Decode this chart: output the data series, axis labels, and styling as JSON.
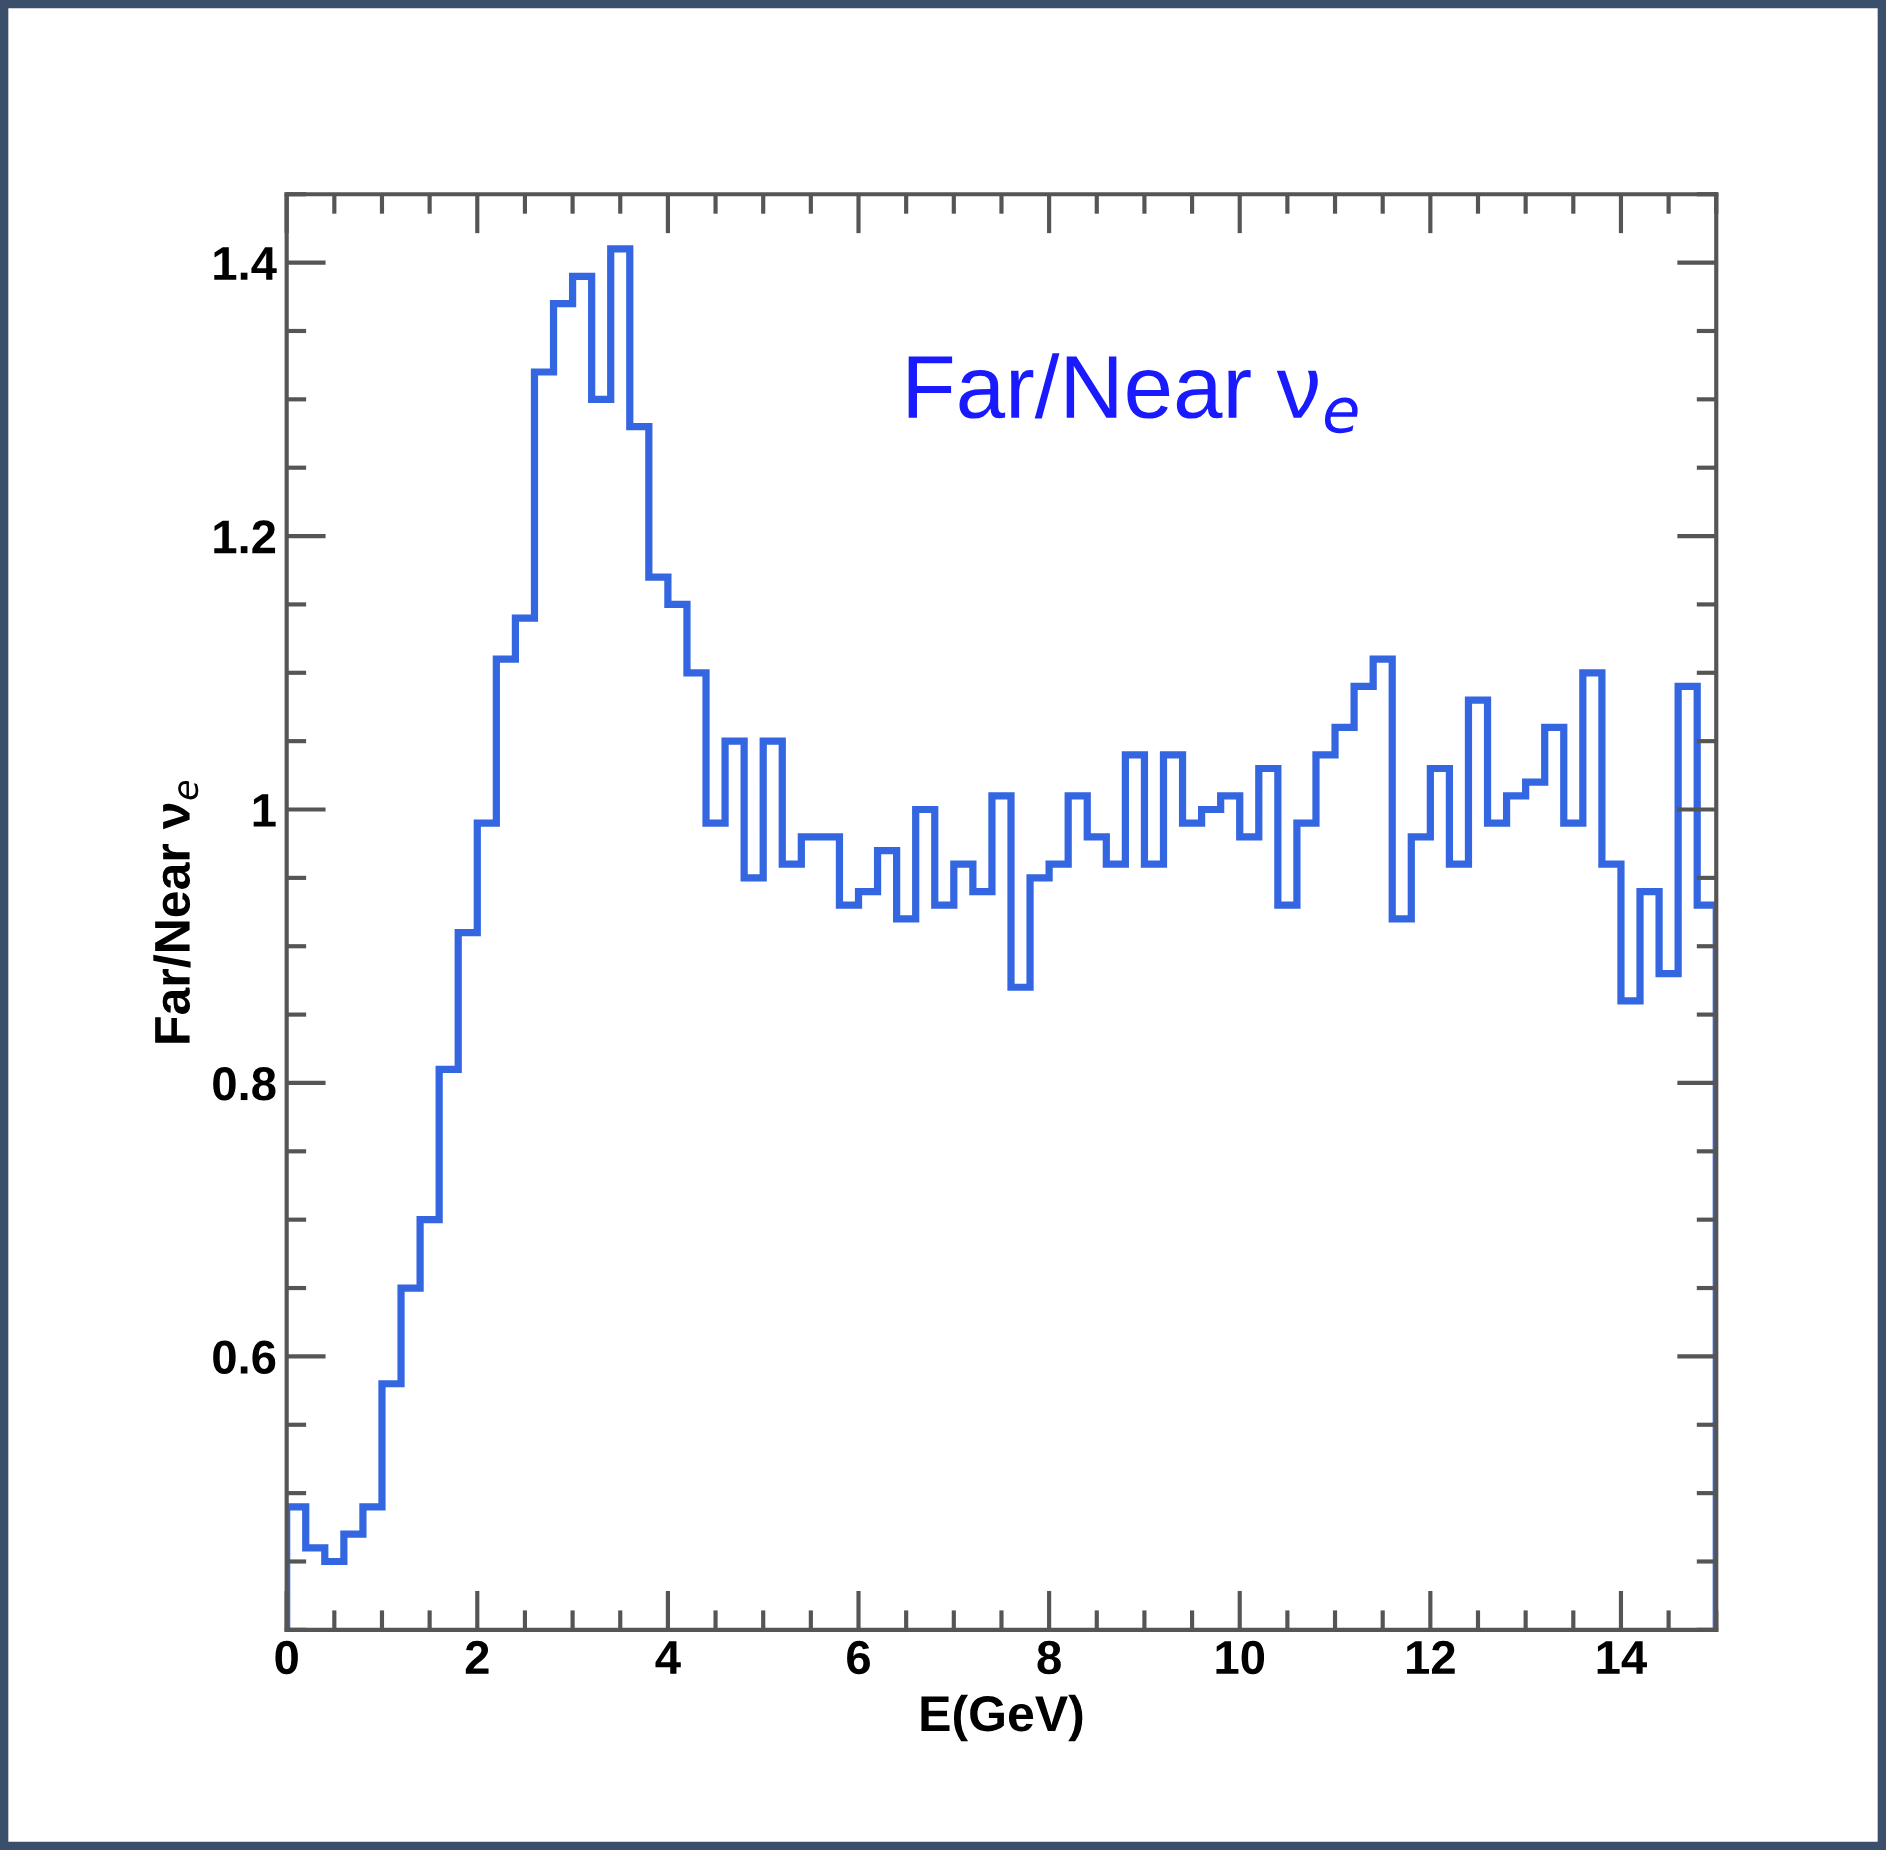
{
  "chart_data": {
    "type": "histogram",
    "xlabel": "E(GeV)",
    "ylabel": "Far/Near ν$_{e}$",
    "annotations": [
      "Far/Near ν$_{e}$"
    ],
    "bins": [
      0,
      0.2,
      0.4,
      0.6,
      0.8,
      1,
      1.2,
      1.4,
      1.6,
      1.8,
      2,
      2.2,
      2.4,
      2.6,
      2.8,
      3,
      3.2,
      3.4,
      3.6,
      3.8,
      4,
      4.2,
      4.4,
      4.6,
      4.8,
      5,
      5.2,
      5.4,
      5.6,
      5.8,
      6,
      6.2,
      6.4,
      6.6,
      6.8,
      7,
      7.2,
      7.4,
      7.6,
      7.8,
      8,
      8.2,
      8.4,
      8.6,
      8.8,
      9,
      9.2,
      9.4,
      9.6,
      9.8,
      10,
      10.2,
      10.4,
      10.6,
      10.8,
      11,
      11.2,
      11.4,
      11.6,
      11.8,
      12,
      12.2,
      12.4,
      12.6,
      12.8,
      13,
      13.2,
      13.4,
      13.6,
      13.8,
      14,
      14.2,
      14.4,
      14.6,
      14.8,
      15
    ],
    "values": [
      0.49,
      0.46,
      0.45,
      0.47,
      0.49,
      0.58,
      0.65,
      0.7,
      0.81,
      0.91,
      0.99,
      1.11,
      1.14,
      1.32,
      1.37,
      1.39,
      1.3,
      1.41,
      1.28,
      1.17,
      1.15,
      1.1,
      0.99,
      1.05,
      0.95,
      1.05,
      0.96,
      0.98,
      0.98,
      0.93,
      0.94,
      0.97,
      0.92,
      1.0,
      0.93,
      0.96,
      0.94,
      1.01,
      0.87,
      0.95,
      0.96,
      1.01,
      0.98,
      0.96,
      1.04,
      0.96,
      1.04,
      0.99,
      1.0,
      1.01,
      0.98,
      1.03,
      0.93,
      0.99,
      1.04,
      1.06,
      1.09,
      1.11,
      0.92,
      0.98,
      1.03,
      0.96,
      1.08,
      0.99,
      1.01,
      1.02,
      1.06,
      0.99,
      1.1,
      0.96,
      0.86,
      0.94,
      0.88,
      1.09,
      0.93
    ],
    "color": "#3366e0",
    "xlim": [
      0,
      15
    ],
    "ylim": [
      0.4,
      1.45
    ],
    "xticks": [
      0,
      2,
      4,
      6,
      8,
      10,
      12,
      14
    ],
    "yticks": [
      0.6,
      0.8,
      1,
      1.2,
      1.4
    ],
    "grid": false
  }
}
